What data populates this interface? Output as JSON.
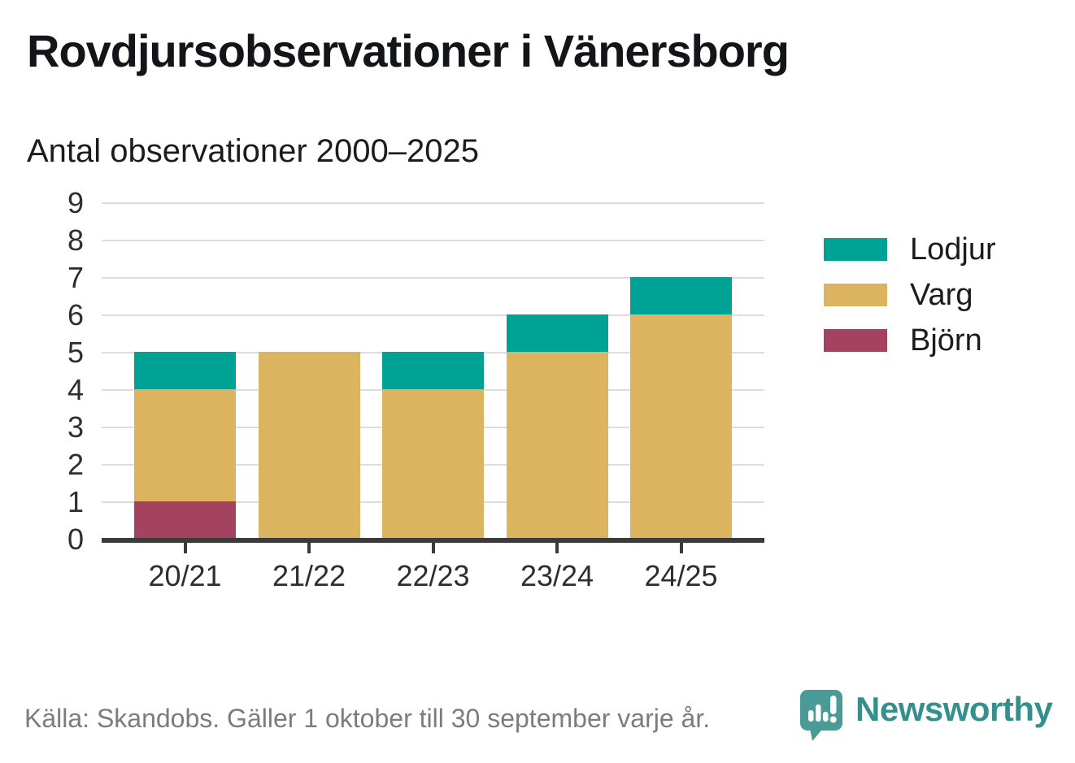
{
  "header": {
    "title": "Rovdjursobservationer i Vänersborg",
    "subtitle": "Antal observationer 2000–2025"
  },
  "chart_data": {
    "type": "bar",
    "stacked": true,
    "title": "Rovdjursobservationer i Vänersborg",
    "subtitle": "Antal observationer 2000–2025",
    "categories": [
      "20/21",
      "21/22",
      "22/23",
      "23/24",
      "24/25"
    ],
    "series": [
      {
        "name": "Björn",
        "color": "#A4435F",
        "values": [
          1,
          0,
          0,
          0,
          0
        ]
      },
      {
        "name": "Varg",
        "color": "#DCB35F",
        "values": [
          3,
          5,
          4,
          5,
          6
        ]
      },
      {
        "name": "Lodjur",
        "color": "#00A295",
        "values": [
          1,
          0,
          1,
          1,
          1
        ]
      }
    ],
    "totals": [
      5,
      5,
      5,
      6,
      7
    ],
    "ylim": [
      0,
      9
    ],
    "yticks": [
      0,
      1,
      2,
      3,
      4,
      5,
      6,
      7,
      8,
      9
    ],
    "grid": true,
    "legend_position": "right",
    "legend_order": [
      "Lodjur",
      "Varg",
      "Björn"
    ]
  },
  "colors": {
    "axis": "#3B3B3B",
    "grid": "#DDDDDD",
    "tick": "#3B3B3B",
    "logo": "#4A9B98",
    "logo_glyph": "#FFFFFF",
    "brand_text": "#35908D"
  },
  "footer": {
    "source": "Källa: Skandobs. Gäller 1 oktober till 30 september varje år.",
    "brand": "Newsworthy"
  }
}
